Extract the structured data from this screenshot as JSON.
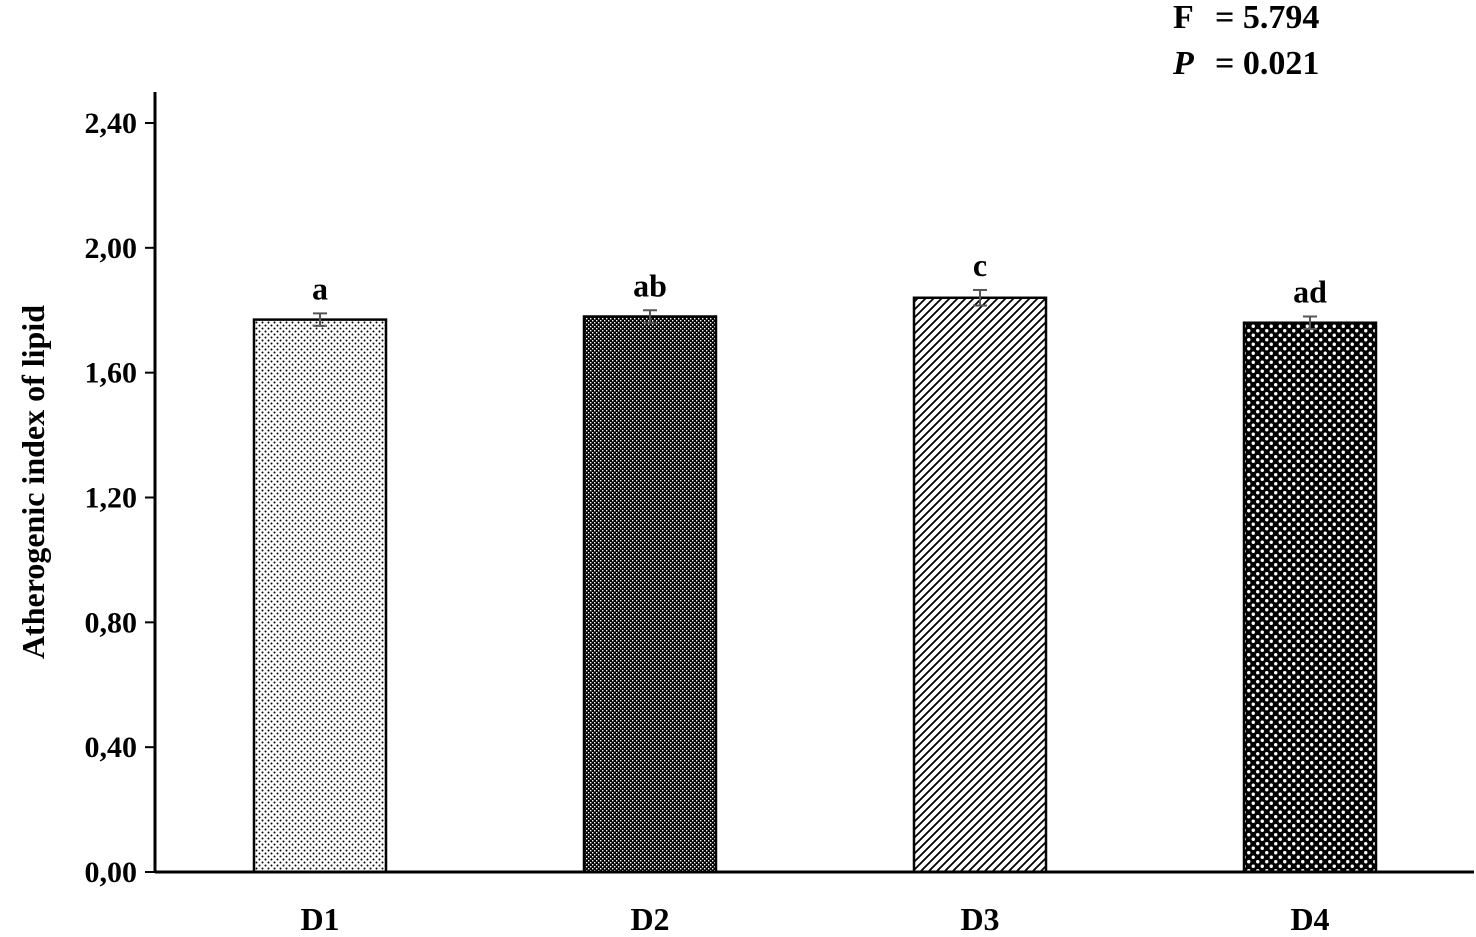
{
  "stats": {
    "f_label": "F",
    "f_value": "= 5.794",
    "p_label": "P",
    "p_value": "= 0.021"
  },
  "chart_data": {
    "type": "bar",
    "title": "",
    "xlabel": "",
    "ylabel": "Atherogenic index of lipid",
    "categories": [
      "D1",
      "D2",
      "D3",
      "D4"
    ],
    "values": [
      1.77,
      1.78,
      1.84,
      1.76
    ],
    "error": [
      0.02,
      0.02,
      0.025,
      0.02
    ],
    "significance_labels": [
      "a",
      "ab",
      "c",
      "ad"
    ],
    "ylim": [
      0,
      2.4
    ],
    "yticks": [
      0,
      0.4,
      0.8,
      1.2,
      1.6,
      2.0,
      2.4
    ],
    "ytick_labels": [
      "0,00",
      "0,40",
      "0,80",
      "1,20",
      "1,60",
      "2,00",
      "2,40"
    ],
    "grid": false,
    "legend": "none",
    "bar_patterns": [
      "fine-dots",
      "dense-dots",
      "diagonal-stripes",
      "circle-dots"
    ],
    "colors": {
      "bar_border": "#000000",
      "error_bar": "#555555",
      "axis": "#000000"
    }
  }
}
